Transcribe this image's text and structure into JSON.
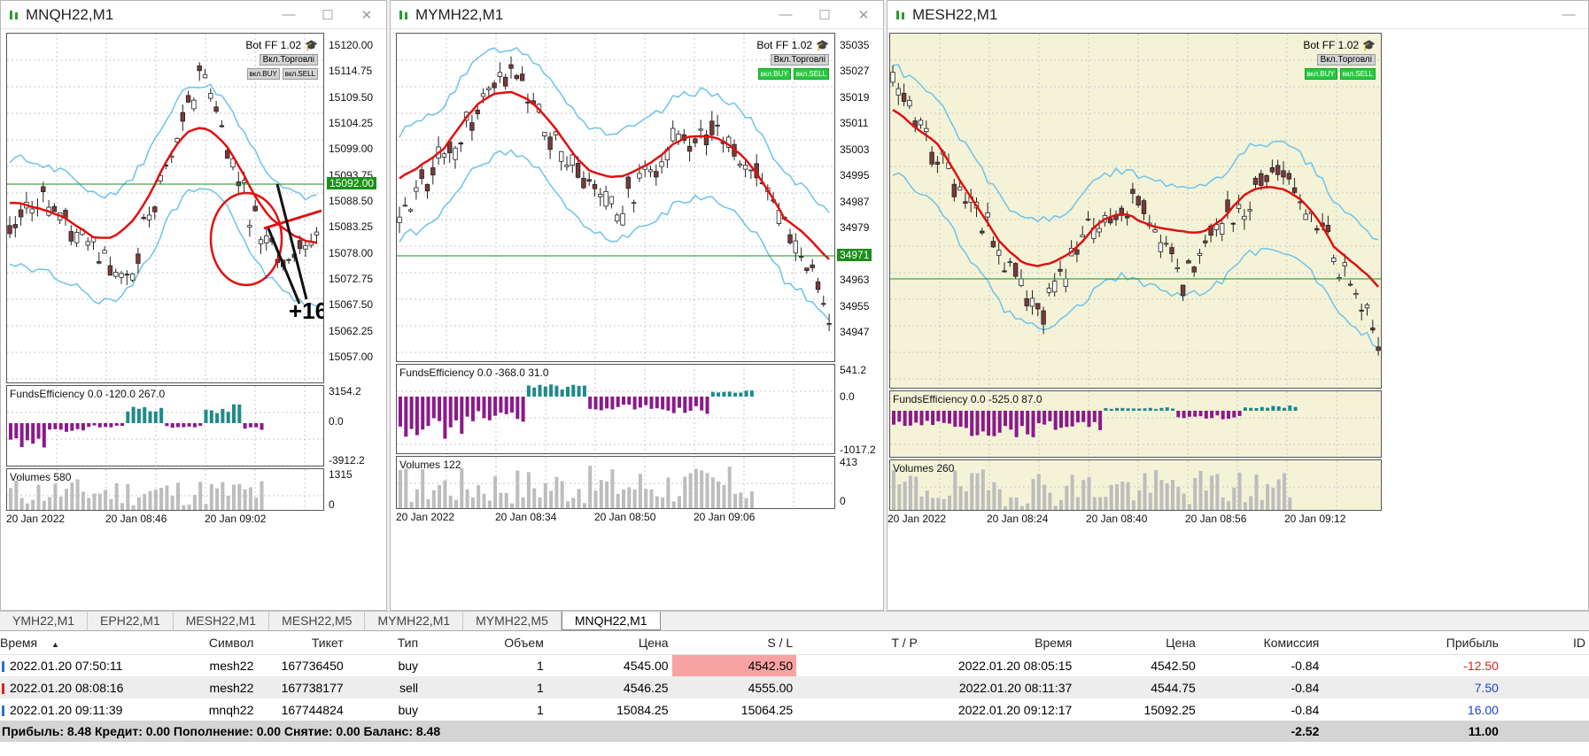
{
  "windows": [
    {
      "title": "MNQH22,M1",
      "bot": "Bot FF 1.02",
      "bot_btn": "Вкл.Торговлі",
      "btn_buy": "вкл.BUY",
      "btn_sell": "вкл.SELL",
      "price_labels": [
        "15120.00",
        "15114.75",
        "15109.50",
        "15104.25",
        "15099.00",
        "15093.75",
        "15088.50",
        "15083.25",
        "15078.00",
        "15072.75",
        "15067.50",
        "15062.25",
        "15057.00"
      ],
      "current_price": "15092.00",
      "annotation": "+16",
      "fe_label": "FundsEfficiency 0.0 -120.0 267.0",
      "fe_axis": [
        "3154.2",
        "0.0",
        "-3912.2"
      ],
      "vol_label": "Volumes 580",
      "vol_axis": [
        "1315",
        "0"
      ],
      "time_labels": [
        "20 Jan 2022",
        "20 Jan 08:46",
        "20 Jan 09:02"
      ]
    },
    {
      "title": "MYMH22,M1",
      "bot": "Bot FF 1.02",
      "bot_btn": "Вкл.Торговлі",
      "btn_buy": "вкл.BUY",
      "btn_sell": "вкл.SELL",
      "price_labels": [
        "35035",
        "35027",
        "35019",
        "35011",
        "35003",
        "34995",
        "34987",
        "34979",
        "34971",
        "34963",
        "34955",
        "34947"
      ],
      "current_price": "34971",
      "fe_label": "FundsEfficiency 0.0 -368.0 31.0",
      "fe_axis": [
        "541.2",
        "0.0",
        "-1017.2"
      ],
      "vol_label": "Volumes 122",
      "vol_axis": [
        "413",
        "0"
      ],
      "time_labels": [
        "20 Jan 2022",
        "20 Jan 08:34",
        "20 Jan 08:50",
        "20 Jan 09:06"
      ]
    },
    {
      "title": "MESH22,M1",
      "bot": "Bot FF 1.02",
      "bot_btn": "Вкл.Торговлі",
      "btn_buy": "вкл.BUY",
      "btn_sell": "вкл.SELL",
      "fe_label": "FundsEfficiency 0.0 -525.0 87.0",
      "vol_label": "Volumes 260",
      "time_labels": [
        "20 Jan 2022",
        "20 Jan 08:24",
        "20 Jan 08:40",
        "20 Jan 08:56",
        "20 Jan 09:12"
      ]
    }
  ],
  "tabs": [
    "YMH22,M1",
    "EPH22,M1",
    "MESH22,M1",
    "MESH22,M5",
    "MYMH22,M1",
    "MYMH22,M5",
    "MNQH22,M1"
  ],
  "active_tab": "MNQH22,M1",
  "table": {
    "headers": [
      "Время",
      "Символ",
      "Тикет",
      "Тип",
      "Объем",
      "Цена",
      "S / L",
      "T / P",
      "Время",
      "Цена",
      "Комиссия",
      "Прибыль",
      "ID"
    ],
    "rows": [
      {
        "open_time": "2022.01.20 07:50:11",
        "symbol": "mesh22",
        "ticket": "167736450",
        "type": "buy",
        "volume": "1",
        "price": "4545.00",
        "sl": "4542.50",
        "tp": "",
        "close_time": "2022.01.20 08:05:15",
        "close_price": "4542.50",
        "commission": "-0.84",
        "profit": "-12.50"
      },
      {
        "open_time": "2022.01.20 08:08:16",
        "symbol": "mesh22",
        "ticket": "167738177",
        "type": "sell",
        "volume": "1",
        "price": "4546.25",
        "sl": "4555.00",
        "tp": "",
        "close_time": "2022.01.20 08:11:37",
        "close_price": "4544.75",
        "commission": "-0.84",
        "profit": "7.50"
      },
      {
        "open_time": "2022.01.20 09:11:39",
        "symbol": "mnqh22",
        "ticket": "167744824",
        "type": "buy",
        "volume": "1",
        "price": "15084.25",
        "sl": "15064.25",
        "tp": "",
        "close_time": "2022.01.20 09:12:17",
        "close_price": "15092.25",
        "commission": "-0.84",
        "profit": "16.00"
      }
    ],
    "summary": "Прибыль: 8.48  Кредит: 0.00  Пополнение: 0.00  Снятие: 0.00  Баланс: 8.48",
    "total_commission": "-2.52",
    "total_profit": "11.00"
  },
  "colors": {
    "up_candle": "#ffffff",
    "down_candle": "#7a3a3a",
    "bands": "#6ec3ea",
    "ma": "#e01010",
    "positive_hist": "#1f8a8a",
    "negative_hist": "#8a1a8a",
    "price_line": "#1a8f1a"
  }
}
